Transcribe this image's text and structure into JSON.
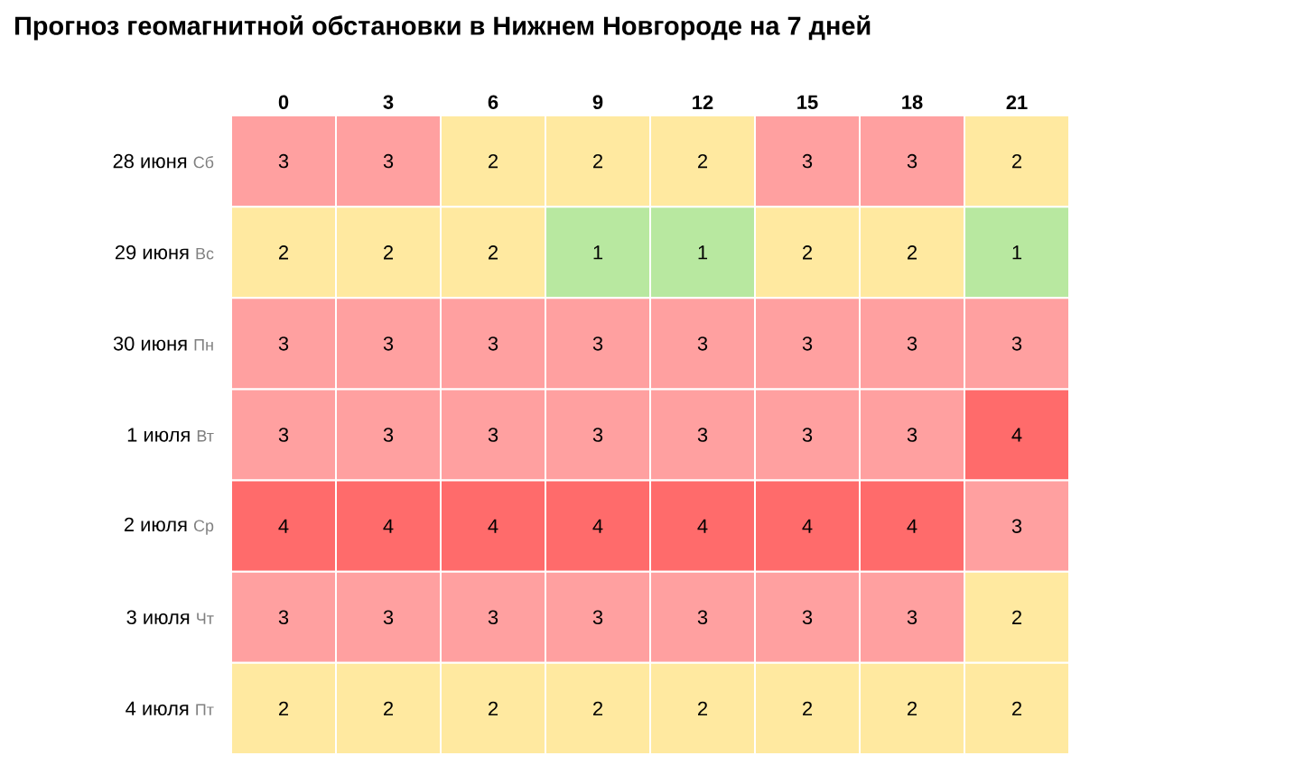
{
  "chart_data": {
    "type": "heatmap",
    "title": "Прогноз геомагнитной обстановки в Нижнем Новгороде на 7 дней",
    "categories": [
      "0",
      "3",
      "6",
      "9",
      "12",
      "15",
      "18",
      "21"
    ],
    "y_categories": [
      "28 июня",
      "29 июня",
      "30 июня",
      "1 июля",
      "2 июля",
      "3 июля",
      "4 июля"
    ],
    "y2_categories": [
      "Сб",
      "Вс",
      "Пн",
      "Вт",
      "Ср",
      "Чт",
      "Пт"
    ],
    "cells": [
      [
        3,
        3,
        2,
        2,
        2,
        3,
        3,
        2
      ],
      [
        2,
        2,
        2,
        1,
        1,
        2,
        2,
        1
      ],
      [
        3,
        3,
        3,
        3,
        3,
        3,
        3,
        3
      ],
      [
        3,
        3,
        3,
        3,
        3,
        3,
        3,
        4
      ],
      [
        4,
        4,
        4,
        4,
        4,
        4,
        4,
        3
      ],
      [
        3,
        3,
        3,
        3,
        3,
        3,
        3,
        2
      ],
      [
        2,
        2,
        2,
        2,
        2,
        2,
        2,
        2
      ]
    ],
    "colors": [
      "#b8e8a0",
      "#ffe9a0",
      "#ffa0a0",
      "#ff6b6b"
    ],
    "data_labels": true
  }
}
